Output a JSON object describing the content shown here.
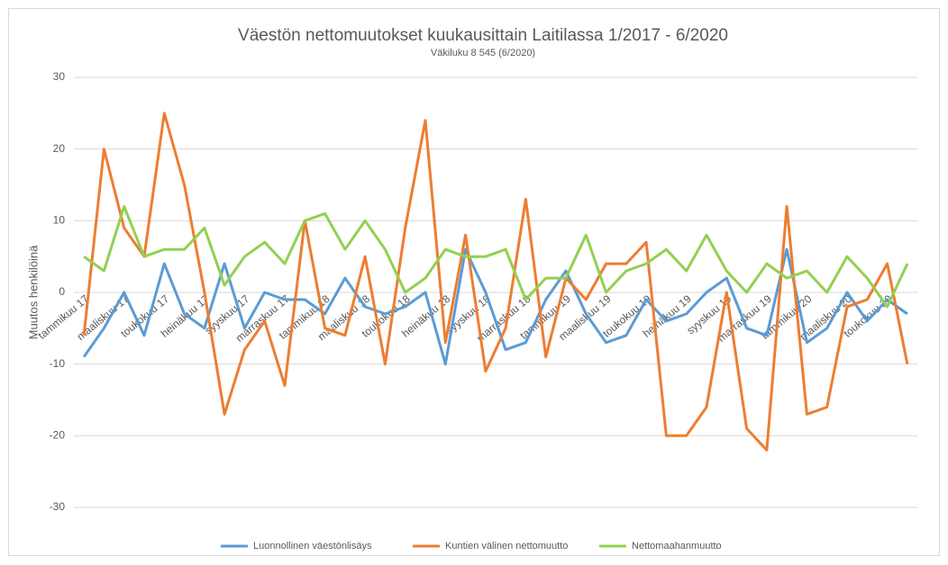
{
  "chart_data": {
    "type": "line",
    "title": "Väestön nettomuutokset kuukausittain Laitilassa 1/2017 - 6/2020",
    "subtitle": "Väkiluku 8 545 (6/2020)",
    "y_label": "Muutos henkilöinä",
    "categories": [
      "tammikuu 17",
      null,
      "maaliskuu 17",
      null,
      "toukokuu 17",
      null,
      "heinäkuu 17",
      null,
      "syyskuu 17",
      null,
      "marraskuu 17",
      null,
      "tammikuu 18",
      null,
      "maaliskuu 18",
      null,
      "toukokuu 18",
      null,
      "heinäkuu 18",
      null,
      "syyskuu 18",
      null,
      "marraskuu 18",
      null,
      "tammikuu 19",
      null,
      "maaliskuu 19",
      null,
      "toukokuu 19",
      null,
      "heinäkuu 19",
      null,
      "syyskuu 19",
      null,
      "marraskuu 19",
      null,
      "tammikuu 20",
      null,
      "maaliskuu 20",
      null,
      "toukokuu 20",
      null
    ],
    "series": [
      {
        "name": "Luonnollinen väestönlisäys",
        "color": "#5b9bd5",
        "values": [
          -9,
          -5,
          0,
          -6,
          4,
          -3,
          -5,
          4,
          -5,
          0,
          -1,
          -1,
          -3,
          2,
          -2,
          -3,
          -2,
          0,
          -10,
          6,
          0,
          -8,
          -7,
          -1,
          3,
          -3,
          -7,
          -6,
          -1,
          -4,
          -3,
          0,
          2,
          -5,
          -6,
          6,
          -7,
          -5,
          0,
          -4,
          -1,
          -3
        ]
      },
      {
        "name": "Kuntien välinen nettomuutto",
        "color": "#ed7d31",
        "values": [
          -6,
          20,
          9,
          5,
          25,
          15,
          0,
          -17,
          -8,
          -4,
          -13,
          10,
          -5,
          -6,
          5,
          -10,
          9,
          24,
          -7,
          8,
          -11,
          -5,
          13,
          -9,
          2,
          -1,
          4,
          4,
          7,
          -20,
          -20,
          -16,
          0,
          -19,
          -22,
          12,
          -17,
          -16,
          -2,
          -1,
          4,
          -10
        ]
      },
      {
        "name": "Nettomaahanmuutto",
        "color": "#92d050",
        "values": [
          5,
          3,
          12,
          5,
          6,
          6,
          9,
          1,
          5,
          7,
          4,
          10,
          11,
          6,
          10,
          6,
          0,
          2,
          6,
          5,
          5,
          6,
          -1,
          2,
          2,
          8,
          0,
          3,
          4,
          6,
          3,
          8,
          3,
          0,
          4,
          2,
          3,
          0,
          5,
          2,
          -2,
          4
        ]
      }
    ],
    "ylim": [
      -30,
      30
    ],
    "yticks": [
      -30,
      -20,
      -10,
      0,
      10,
      20,
      30
    ],
    "grid": true,
    "legend": "bottom"
  }
}
